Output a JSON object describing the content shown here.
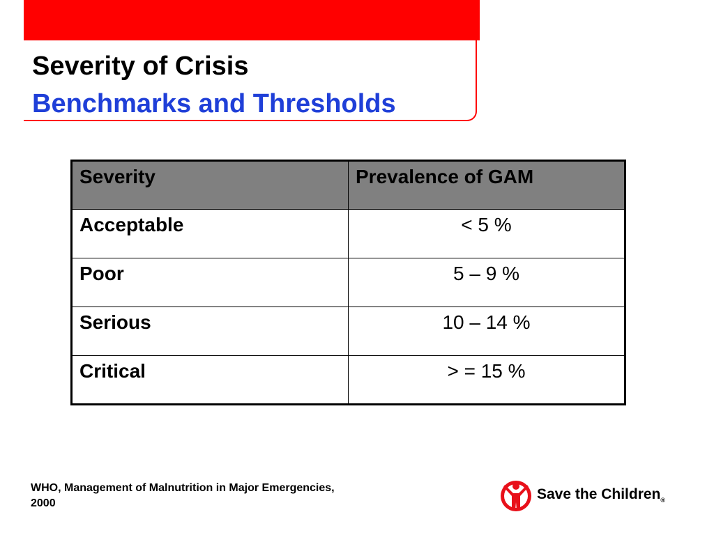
{
  "slide": {
    "title_line1": "Severity of Crisis",
    "title_line2": "Benchmarks and Thresholds",
    "colors": {
      "accent_red": "#ff0000",
      "title_blue": "#1f3fd8",
      "header_gray": "#808080"
    }
  },
  "table": {
    "headers": [
      "Severity",
      "Prevalence of GAM"
    ],
    "rows": [
      {
        "severity": "Acceptable",
        "prevalence": "< 5 %"
      },
      {
        "severity": "Poor",
        "prevalence": "5 – 9 %"
      },
      {
        "severity": "Serious",
        "prevalence": "10 – 14 %"
      },
      {
        "severity": "Critical",
        "prevalence": "> = 15 %"
      }
    ]
  },
  "footer": {
    "citation": "WHO, Management of Malnutrition in Major Emergencies, 2000",
    "logo_text": "Save the Children",
    "logo_mark": "®",
    "logo_icon": "child-figure-icon"
  }
}
